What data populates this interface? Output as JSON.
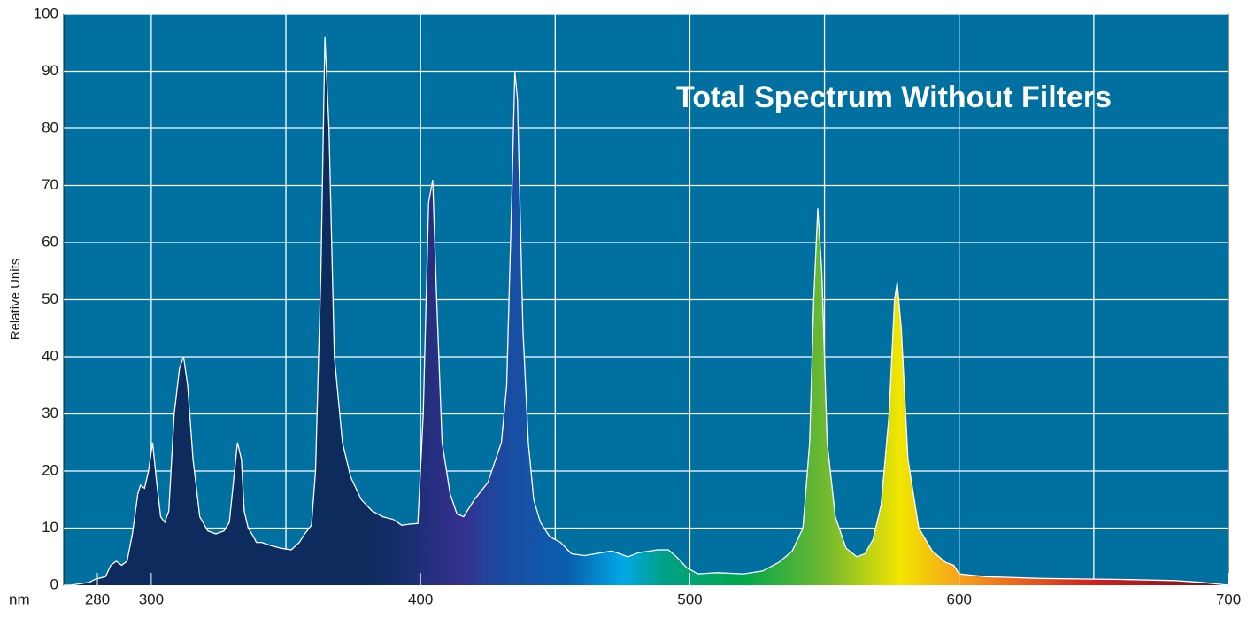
{
  "chart_data": {
    "type": "area",
    "title": "Total Spectrum Without Filters",
    "y_label": "Relative Units",
    "x_label": "nm",
    "xlim": [
      267.5,
      700
    ],
    "ylim": [
      0,
      100
    ],
    "xticks": [
      280,
      300,
      400,
      500,
      600,
      700
    ],
    "xgrid": [
      300,
      350,
      400,
      450,
      500,
      550,
      600,
      650
    ],
    "yticks": [
      0,
      10,
      20,
      30,
      40,
      50,
      60,
      70,
      80,
      90,
      100
    ],
    "grid": true,
    "background": "#0070a0",
    "line_color": "#ffffff",
    "fill_stops": [
      {
        "x": 270,
        "color": "#0d2b5c"
      },
      {
        "x": 380,
        "color": "#0d2b5c"
      },
      {
        "x": 400,
        "color": "#1f2f78"
      },
      {
        "x": 415,
        "color": "#35308f"
      },
      {
        "x": 430,
        "color": "#1b4aa0"
      },
      {
        "x": 455,
        "color": "#0a5fae"
      },
      {
        "x": 475,
        "color": "#00a8e6"
      },
      {
        "x": 490,
        "color": "#00a08a"
      },
      {
        "x": 520,
        "color": "#00a84a"
      },
      {
        "x": 550,
        "color": "#70b830"
      },
      {
        "x": 578,
        "color": "#f2e600"
      },
      {
        "x": 600,
        "color": "#f7a21a"
      },
      {
        "x": 625,
        "color": "#ea5a1c"
      },
      {
        "x": 650,
        "color": "#d0201f"
      },
      {
        "x": 700,
        "color": "#7a0e12"
      }
    ],
    "x": [
      270,
      277,
      279,
      283,
      285,
      287,
      289,
      291,
      293,
      295,
      296,
      297.5,
      299,
      300.5,
      302,
      303.5,
      305,
      306.5,
      308.5,
      310.5,
      312,
      313.5,
      315.5,
      318,
      321,
      324,
      327,
      329,
      330.5,
      332,
      333.5,
      334.5,
      336,
      338,
      339,
      341,
      344,
      348,
      352,
      355,
      357,
      359.5,
      361,
      363,
      364.5,
      366,
      368,
      371,
      374,
      378,
      382,
      386,
      390,
      393,
      396,
      399,
      401,
      403,
      404.5,
      406,
      408,
      411,
      413.5,
      416,
      418,
      420,
      425,
      430,
      432,
      434,
      435,
      436,
      438,
      440,
      442,
      444.5,
      448,
      452,
      456,
      461,
      466,
      471,
      474,
      477,
      481,
      488,
      492,
      495,
      499,
      503,
      510,
      520,
      527,
      533,
      538,
      542,
      544.5,
      546,
      547.5,
      549,
      551,
      554,
      558,
      562,
      565,
      568,
      571,
      574,
      576,
      577,
      578.5,
      581,
      585,
      590,
      595,
      598,
      600,
      610,
      630,
      660,
      680,
      690,
      700
    ],
    "values": [
      0,
      0.5,
      1,
      1.5,
      3.5,
      4.2,
      3.5,
      4.2,
      9,
      16,
      17.5,
      17,
      20,
      25,
      18,
      12,
      11,
      13,
      30,
      38,
      40,
      35,
      22,
      12,
      9.5,
      9,
      9.5,
      11,
      18,
      25,
      22,
      13,
      10,
      8.5,
      7.5,
      7.5,
      7,
      6.5,
      6.2,
      7.5,
      9,
      10.5,
      20,
      55,
      96,
      80,
      40,
      25,
      19,
      15,
      13,
      12,
      11.5,
      10.5,
      10.7,
      10.8,
      30,
      67,
      71,
      50,
      25,
      16,
      12.5,
      12,
      13.5,
      15,
      18,
      25,
      35,
      70,
      90,
      85,
      45,
      25,
      15,
      11,
      8.5,
      7.5,
      5.5,
      5.2,
      5.6,
      6,
      5.5,
      5,
      5.7,
      6.2,
      6.2,
      5,
      3,
      2,
      2.2,
      2,
      2.5,
      4,
      6,
      10,
      25,
      50,
      66,
      55,
      25,
      12,
      6.5,
      5,
      5.5,
      8,
      14,
      30,
      50,
      53,
      45,
      22,
      10,
      6,
      4,
      3.5,
      2,
      1.5,
      1.2,
      1,
      0.8,
      0.5,
      0
    ]
  }
}
